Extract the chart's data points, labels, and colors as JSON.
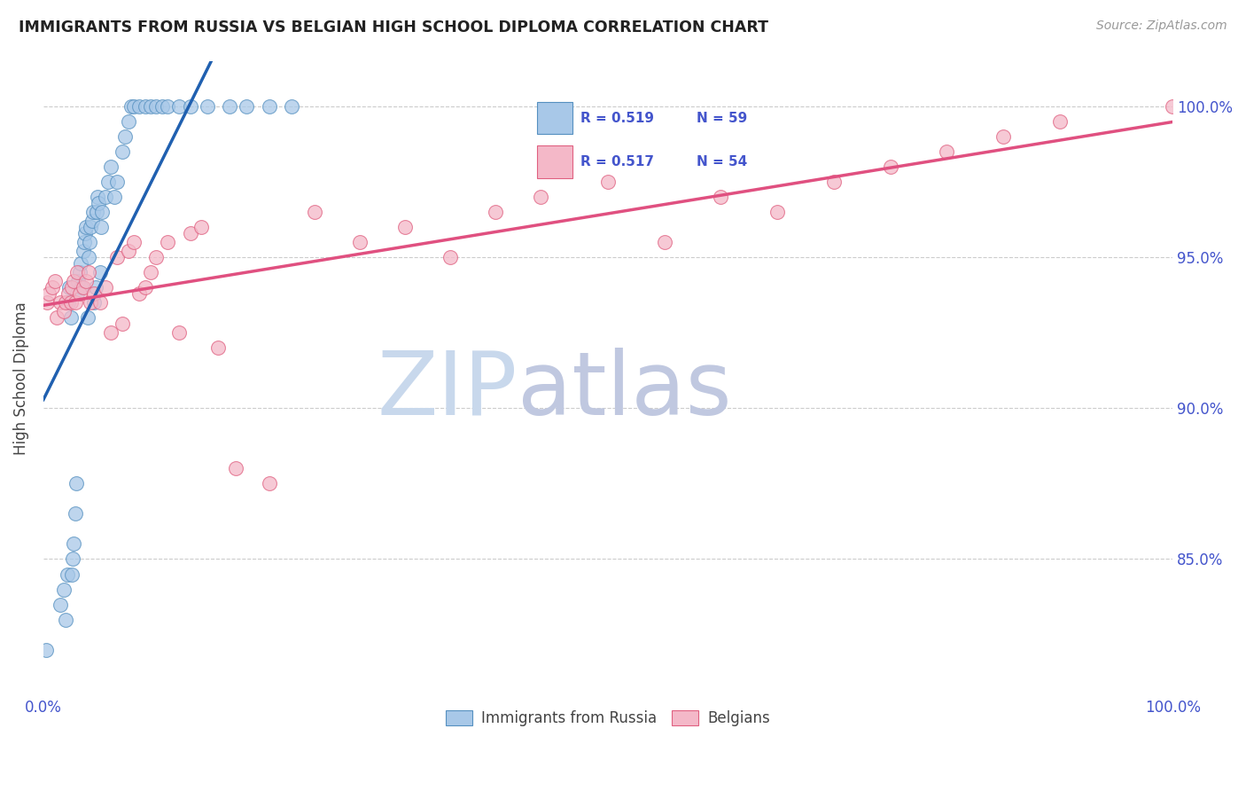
{
  "title": "IMMIGRANTS FROM RUSSIA VS BELGIAN HIGH SCHOOL DIPLOMA CORRELATION CHART",
  "source": "Source: ZipAtlas.com",
  "ylabel": "High School Diploma",
  "legend_blue_R": "R = 0.519",
  "legend_blue_N": "N = 59",
  "legend_pink_R": "R = 0.517",
  "legend_pink_N": "N = 54",
  "legend_label_blue": "Immigrants from Russia",
  "legend_label_pink": "Belgians",
  "blue_fill": "#a8c8e8",
  "pink_fill": "#f4b8c8",
  "blue_edge": "#5590c0",
  "pink_edge": "#e06080",
  "blue_line": "#2060b0",
  "pink_line": "#e05080",
  "title_color": "#222222",
  "source_color": "#999999",
  "tick_color": "#4455cc",
  "watermark_zip_color": "#c8d8ec",
  "watermark_atlas_color": "#c0c8e0",
  "blue_x": [
    0.2,
    1.5,
    1.8,
    2.0,
    2.1,
    2.2,
    2.3,
    2.4,
    2.5,
    2.6,
    2.7,
    2.8,
    2.9,
    3.0,
    3.1,
    3.2,
    3.3,
    3.4,
    3.5,
    3.6,
    3.7,
    3.8,
    3.9,
    4.0,
    4.1,
    4.2,
    4.3,
    4.4,
    4.5,
    4.6,
    4.7,
    4.8,
    4.9,
    5.0,
    5.1,
    5.2,
    5.5,
    5.7,
    6.0,
    6.3,
    6.5,
    7.0,
    7.2,
    7.5,
    7.8,
    8.0,
    8.5,
    9.0,
    9.5,
    10.0,
    10.5,
    11.0,
    12.0,
    13.0,
    14.5,
    16.5,
    18.0,
    20.0,
    22.0
  ],
  "blue_y": [
    82.0,
    83.5,
    84.0,
    83.0,
    84.5,
    93.5,
    94.0,
    93.0,
    84.5,
    85.0,
    85.5,
    86.5,
    87.5,
    93.8,
    94.2,
    94.5,
    94.8,
    94.0,
    95.2,
    95.5,
    95.8,
    96.0,
    93.0,
    95.0,
    95.5,
    96.0,
    96.2,
    96.5,
    93.5,
    94.0,
    96.5,
    97.0,
    96.8,
    94.5,
    96.0,
    96.5,
    97.0,
    97.5,
    98.0,
    97.0,
    97.5,
    98.5,
    99.0,
    99.5,
    100.0,
    100.0,
    100.0,
    100.0,
    100.0,
    100.0,
    100.0,
    100.0,
    100.0,
    100.0,
    100.0,
    100.0,
    100.0,
    100.0,
    100.0
  ],
  "pink_x": [
    0.3,
    0.5,
    0.8,
    1.0,
    1.2,
    1.5,
    1.8,
    2.0,
    2.2,
    2.4,
    2.5,
    2.7,
    2.8,
    3.0,
    3.2,
    3.5,
    3.8,
    4.0,
    4.2,
    4.5,
    5.0,
    5.5,
    6.0,
    6.5,
    7.0,
    7.5,
    8.0,
    8.5,
    9.0,
    9.5,
    10.0,
    11.0,
    12.0,
    13.0,
    14.0,
    15.5,
    17.0,
    20.0,
    24.0,
    28.0,
    32.0,
    36.0,
    40.0,
    44.0,
    50.0,
    55.0,
    60.0,
    65.0,
    70.0,
    75.0,
    80.0,
    85.0,
    90.0,
    100.0
  ],
  "pink_y": [
    93.5,
    93.8,
    94.0,
    94.2,
    93.0,
    93.5,
    93.2,
    93.5,
    93.8,
    93.5,
    94.0,
    94.2,
    93.5,
    94.5,
    93.8,
    94.0,
    94.2,
    94.5,
    93.5,
    93.8,
    93.5,
    94.0,
    92.5,
    95.0,
    92.8,
    95.2,
    95.5,
    93.8,
    94.0,
    94.5,
    95.0,
    95.5,
    92.5,
    95.8,
    96.0,
    92.0,
    88.0,
    87.5,
    96.5,
    95.5,
    96.0,
    95.0,
    96.5,
    97.0,
    97.5,
    95.5,
    97.0,
    96.5,
    97.5,
    98.0,
    98.5,
    99.0,
    99.5,
    100.0
  ],
  "xlim": [
    0.0,
    100.0
  ],
  "ylim": [
    80.5,
    101.5
  ],
  "ytick_positions": [
    85.0,
    90.0,
    95.0,
    100.0
  ],
  "ytick_labels": [
    "85.0%",
    "90.0%",
    "95.0%",
    "100.0%"
  ],
  "blue_regr_x0": 0.0,
  "blue_regr_x1": 22.0,
  "pink_regr_x0": 0.0,
  "pink_regr_x1": 100.0
}
